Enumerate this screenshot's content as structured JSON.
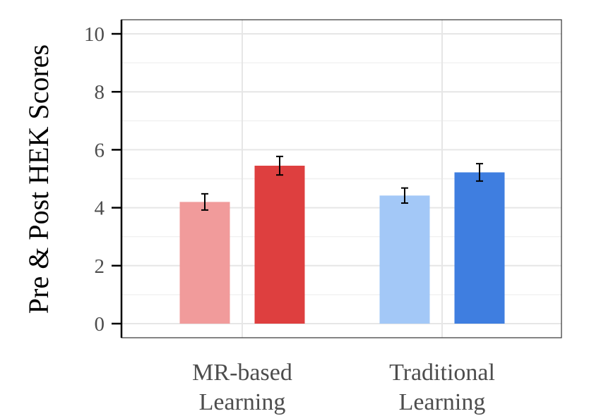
{
  "chart_data": {
    "type": "bar",
    "ylabel": "Pre & Post HEK Scores",
    "xlabel": "",
    "ylim": [
      0,
      10
    ],
    "yticks": [
      0,
      2,
      4,
      6,
      8,
      10
    ],
    "grid": true,
    "legend": "none",
    "categories": [
      {
        "line1": "MR-based",
        "line2": "Learning"
      },
      {
        "line1": "Traditional",
        "line2": "Learning"
      }
    ],
    "bars": [
      {
        "group": 0,
        "phase": "pre",
        "value": 4.2,
        "err": 0.28,
        "color": "#f19b9b"
      },
      {
        "group": 0,
        "phase": "post",
        "value": 5.45,
        "err": 0.32,
        "color": "#de3f3f"
      },
      {
        "group": 1,
        "phase": "pre",
        "value": 4.42,
        "err": 0.26,
        "color": "#a3c8f7"
      },
      {
        "group": 1,
        "phase": "post",
        "value": 5.22,
        "err": 0.3,
        "color": "#3f7ee0"
      }
    ]
  }
}
